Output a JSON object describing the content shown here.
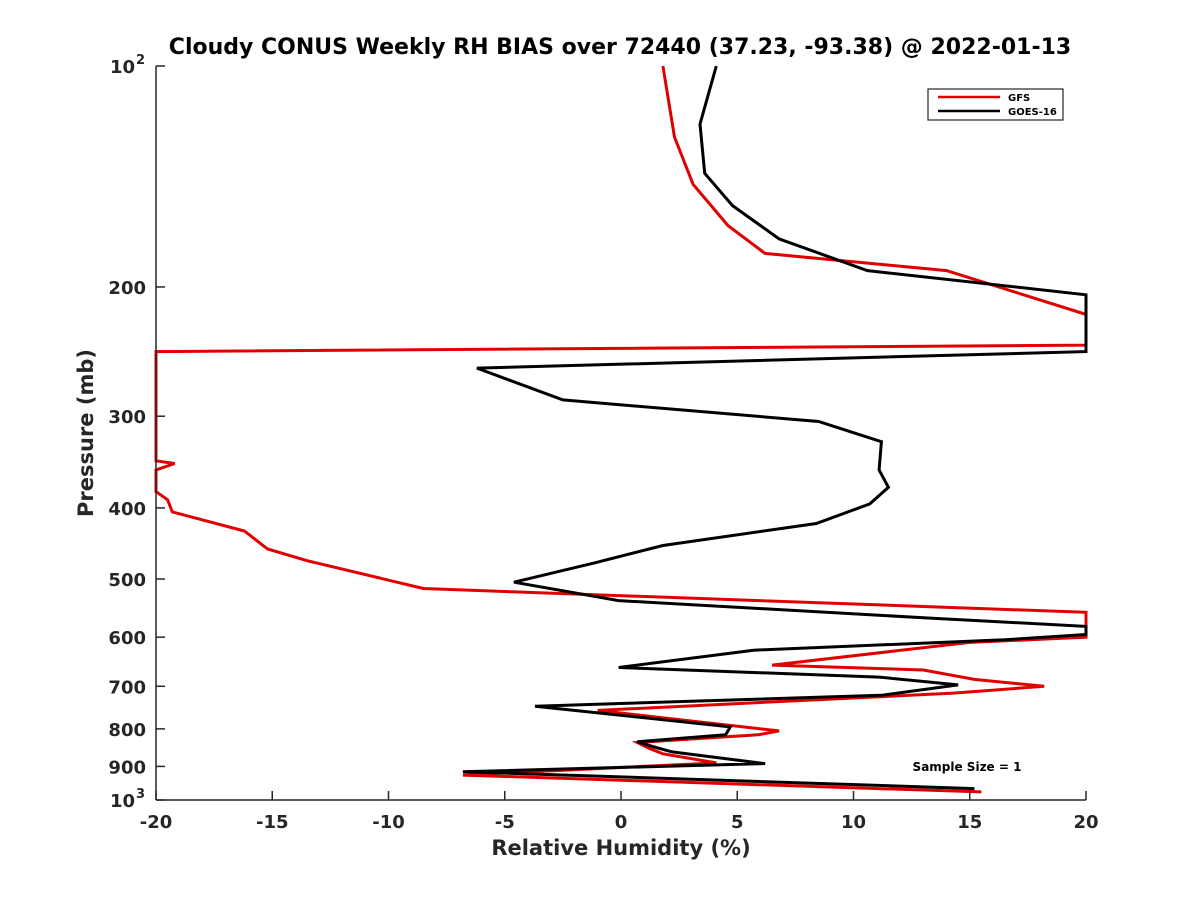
{
  "chart_data": {
    "type": "line",
    "title": "Cloudy CONUS Weekly RH BIAS over 72440 (37.23, -93.38) @ 2022-01-13",
    "xlabel": "Relative Humidity (%)",
    "ylabel": "Pressure (mb)",
    "xlim": [
      -20,
      20
    ],
    "ylim": [
      100,
      1000
    ],
    "y_scale": "log",
    "y_reversed": true,
    "grid": false,
    "legend_position": "top-right",
    "annotation": "Sample Size = 1",
    "x_ticks": [
      "-20",
      "-15",
      "-10",
      "-5",
      "0",
      "5",
      "10",
      "15",
      "20"
    ],
    "y_ticks": [
      {
        "value": 100,
        "base": "10",
        "exp": "2"
      },
      {
        "value": 200,
        "base": "200",
        "exp": ""
      },
      {
        "value": 300,
        "base": "300",
        "exp": ""
      },
      {
        "value": 400,
        "base": "400",
        "exp": ""
      },
      {
        "value": 500,
        "base": "500",
        "exp": ""
      },
      {
        "value": 600,
        "base": "600",
        "exp": ""
      },
      {
        "value": 700,
        "base": "700",
        "exp": ""
      },
      {
        "value": 800,
        "base": "800",
        "exp": ""
      },
      {
        "value": 900,
        "base": "900",
        "exp": ""
      },
      {
        "value": 1000,
        "base": "10",
        "exp": "3"
      }
    ],
    "series": [
      {
        "name": "GFS",
        "color": "#e00000",
        "points": [
          [
            1.8,
            100
          ],
          [
            2.3,
            125
          ],
          [
            3.1,
            145
          ],
          [
            4.6,
            165
          ],
          [
            6.2,
            180
          ],
          [
            14,
            190
          ],
          [
            20,
            218
          ],
          [
            20,
            240
          ],
          [
            -20,
            245
          ],
          [
            -20,
            330
          ],
          [
            -20,
            345
          ],
          [
            -19.2,
            348
          ],
          [
            -20,
            355
          ],
          [
            -20,
            380
          ],
          [
            -19.5,
            390
          ],
          [
            -19.3,
            405
          ],
          [
            -16.2,
            430
          ],
          [
            -15.2,
            455
          ],
          [
            -13.5,
            472
          ],
          [
            -8.5,
            515
          ],
          [
            -5,
            520
          ],
          [
            20,
            555
          ],
          [
            20,
            600
          ],
          [
            15,
            610
          ],
          [
            6.5,
            655
          ],
          [
            13,
            665
          ],
          [
            15.2,
            685
          ],
          [
            18.2,
            700
          ],
          [
            14.3,
            715
          ],
          [
            -1,
            755
          ],
          [
            6.8,
            805
          ],
          [
            5.9,
            815
          ],
          [
            0.7,
            835
          ],
          [
            1.2,
            850
          ],
          [
            1.8,
            865
          ],
          [
            4.1,
            890
          ],
          [
            -6.8,
            925
          ],
          [
            15.5,
            975
          ]
        ]
      },
      {
        "name": "GOES-16",
        "color": "#000000",
        "points": [
          [
            4.1,
            100
          ],
          [
            3.4,
            120
          ],
          [
            3.6,
            140
          ],
          [
            4.8,
            155
          ],
          [
            6.8,
            172
          ],
          [
            10.6,
            190
          ],
          [
            20,
            205
          ],
          [
            20,
            245
          ],
          [
            -6.2,
            258
          ],
          [
            -2.5,
            285
          ],
          [
            8.5,
            305
          ],
          [
            11.2,
            325
          ],
          [
            11.1,
            355
          ],
          [
            11.5,
            375
          ],
          [
            10.7,
            395
          ],
          [
            8.4,
            420
          ],
          [
            1.8,
            450
          ],
          [
            -1.1,
            475
          ],
          [
            -4.6,
            505
          ],
          [
            -0.1,
            535
          ],
          [
            13.2,
            565
          ],
          [
            20,
            580
          ],
          [
            20,
            595
          ],
          [
            16.5,
            605
          ],
          [
            5.7,
            625
          ],
          [
            -0.1,
            660
          ],
          [
            11.1,
            680
          ],
          [
            14.5,
            697
          ],
          [
            11.2,
            720
          ],
          [
            -3.7,
            745
          ],
          [
            4.7,
            795
          ],
          [
            4.5,
            815
          ],
          [
            0.7,
            833
          ],
          [
            1.5,
            848
          ],
          [
            2.2,
            860
          ],
          [
            4.7,
            880
          ],
          [
            6.2,
            892
          ],
          [
            -6.8,
            915
          ],
          [
            15.2,
            965
          ]
        ]
      }
    ]
  }
}
